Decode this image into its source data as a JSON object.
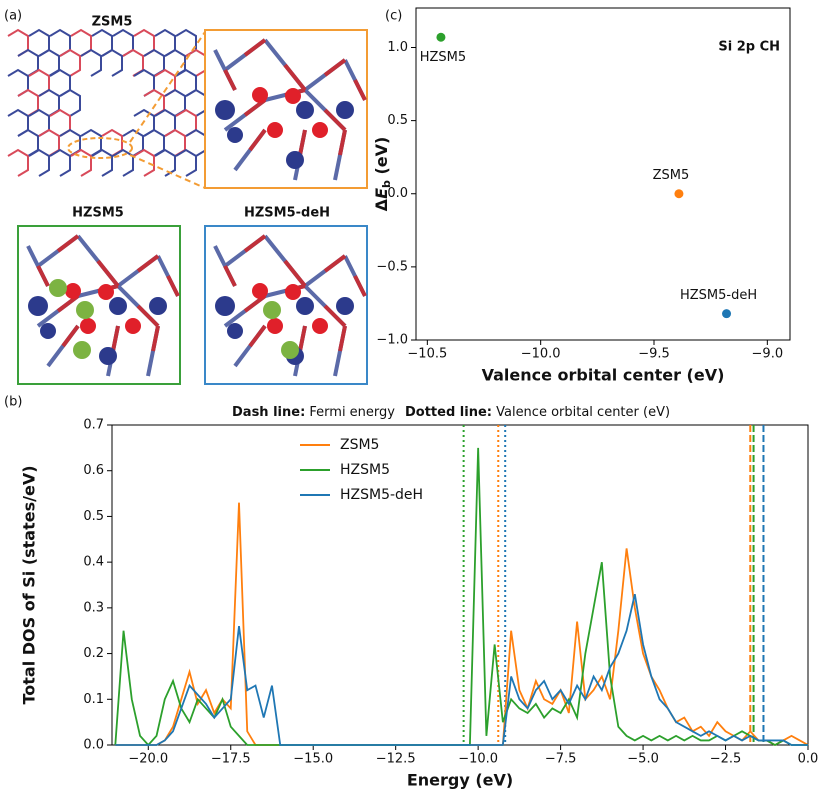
{
  "panel_a": {
    "label": "(a)",
    "titles": [
      "ZSM5",
      "HZSM5",
      "HZSM5-deH"
    ]
  },
  "chart_data": [
    {
      "type": "scatter",
      "panel_label": "(c)",
      "annotation": "Si 2p CH",
      "xlabel": "Valence orbital center (eV)",
      "ylabel": [
        "Δ",
        "E",
        "b",
        " (eV)"
      ],
      "xlim": [
        -10.55,
        -8.9
      ],
      "ylim": [
        -1.0,
        1.27
      ],
      "xticks": [
        {
          "value": -10.5,
          "label": "−10.5"
        },
        {
          "value": -10.0,
          "label": "−10.0"
        },
        {
          "value": -9.5,
          "label": "−9.5"
        },
        {
          "value": -9.0,
          "label": "−9.0"
        }
      ],
      "yticks": [
        {
          "value": -1,
          "label": "−1.0"
        },
        {
          "value": -0.5,
          "label": "−0.5"
        },
        {
          "value": 0,
          "label": "0.0"
        },
        0.5,
        {
          "value": 1,
          "label": "1.0"
        }
      ],
      "series": [
        {
          "name": "HZSM5",
          "color": "#2ca02c",
          "x": [
            -10.44
          ],
          "values": [
            1.07
          ]
        },
        {
          "name": "ZSM5",
          "color": "#ff7f0e",
          "x": [
            -9.39
          ],
          "values": [
            0.0
          ]
        },
        {
          "name": "HZSM5-deH",
          "color": "#1f77b4",
          "x": [
            -9.18
          ],
          "values": [
            -0.82
          ]
        }
      ]
    },
    {
      "type": "line",
      "panel_label": "(b)",
      "annotations": [
        {
          "bold": "Dash line:",
          "text": " Fermi energy"
        },
        {
          "bold": "Dotted line:",
          "text": " Valence orbital center (eV)"
        }
      ],
      "xlabel": "Energy (eV)",
      "ylabel": "Total DOS of Si (states/eV)",
      "xlim": [
        -21.1,
        0
      ],
      "ylim": [
        0,
        0.7
      ],
      "xticks": [
        {
          "value": -20,
          "label": "−20.0"
        },
        {
          "value": -17.5,
          "label": "−17.5"
        },
        {
          "value": -15,
          "label": "−15.0"
        },
        {
          "value": -12.5,
          "label": "−12.5"
        },
        {
          "value": -10,
          "label": "−10.0"
        },
        {
          "value": -7.5,
          "label": "−7.5"
        },
        {
          "value": -5,
          "label": "−5.0"
        },
        {
          "value": -2.5,
          "label": "−2.5"
        },
        {
          "value": 0,
          "label": "0.0"
        }
      ],
      "yticks": [
        {
          "value": 0,
          "label": "0.0"
        },
        0.1,
        0.2,
        0.3,
        0.4,
        0.5,
        0.6,
        0.7
      ],
      "x": [
        -21,
        -20.75,
        -20.5,
        -20.25,
        -20,
        -19.75,
        -19.5,
        -19.25,
        -19,
        -18.75,
        -18.5,
        -18.25,
        -18,
        -17.75,
        -17.5,
        -17.25,
        -17,
        -16.75,
        -16.5,
        -16.25,
        -16,
        -15.75,
        -15.5,
        -15.25,
        -15,
        -14.75,
        -14.5,
        -14.25,
        -14,
        -13.75,
        -13.5,
        -13.25,
        -13,
        -12.75,
        -12.5,
        -12.25,
        -12,
        -11.75,
        -11.5,
        -11.25,
        -11,
        -10.75,
        -10.5,
        -10.25,
        -10,
        -9.75,
        -9.5,
        -9.25,
        -9,
        -8.75,
        -8.5,
        -8.25,
        -8,
        -7.75,
        -7.5,
        -7.25,
        -7,
        -6.75,
        -6.5,
        -6.25,
        -6,
        -5.75,
        -5.5,
        -5.25,
        -5,
        -4.75,
        -4.5,
        -4.25,
        -4,
        -3.75,
        -3.5,
        -3.25,
        -3,
        -2.75,
        -2.5,
        -2.25,
        -2,
        -1.75,
        -1.5,
        -1.25,
        -1,
        -0.75,
        -0.5,
        -0.25,
        0
      ],
      "series": [
        {
          "name": "ZSM5",
          "color": "#ff7f0e",
          "values": [
            0,
            0,
            0,
            0,
            0,
            0,
            0.01,
            0.04,
            0.1,
            0.16,
            0.09,
            0.12,
            0.07,
            0.1,
            0.08,
            0.53,
            0.03,
            0,
            0,
            0,
            0,
            0,
            0,
            0,
            0,
            0,
            0,
            0,
            0,
            0,
            0,
            0,
            0,
            0,
            0,
            0,
            0,
            0,
            0,
            0,
            0,
            0,
            0,
            0,
            0,
            0,
            0,
            0,
            0.25,
            0.12,
            0.08,
            0.14,
            0.1,
            0.09,
            0.12,
            0.07,
            0.27,
            0.1,
            0.12,
            0.15,
            0.1,
            0.25,
            0.43,
            0.3,
            0.2,
            0.15,
            0.12,
            0.08,
            0.05,
            0.06,
            0.03,
            0.04,
            0.02,
            0.05,
            0.03,
            0.02,
            0.01,
            0.03,
            0.01,
            0.01,
            0,
            0.01,
            0.02,
            0.01,
            0
          ]
        },
        {
          "name": "HZSM5",
          "color": "#2ca02c",
          "values": [
            0,
            0.25,
            0.1,
            0.02,
            0,
            0.02,
            0.1,
            0.14,
            0.08,
            0.05,
            0.1,
            0.08,
            0.06,
            0.1,
            0.04,
            0.02,
            0,
            0,
            0,
            0,
            0,
            0,
            0,
            0,
            0,
            0,
            0,
            0,
            0,
            0,
            0,
            0,
            0,
            0,
            0,
            0,
            0,
            0,
            0,
            0,
            0,
            0,
            0,
            0,
            0.65,
            0.02,
            0.22,
            0.05,
            0.1,
            0.08,
            0.07,
            0.09,
            0.06,
            0.08,
            0.07,
            0.1,
            0.06,
            0.2,
            0.3,
            0.4,
            0.15,
            0.04,
            0.02,
            0.01,
            0.02,
            0.01,
            0.02,
            0.01,
            0.02,
            0.01,
            0.02,
            0.01,
            0.01,
            0.02,
            0.01,
            0.02,
            0.03,
            0.02,
            0.01,
            0.01,
            0,
            0.01,
            0,
            0,
            0
          ]
        },
        {
          "name": "HZSM5-deH",
          "color": "#1f77b4",
          "values": [
            0,
            0,
            0,
            0,
            0,
            0,
            0.01,
            0.03,
            0.08,
            0.13,
            0.11,
            0.09,
            0.06,
            0.08,
            0.1,
            0.26,
            0.12,
            0.13,
            0.06,
            0.13,
            0,
            0,
            0,
            0,
            0,
            0,
            0,
            0,
            0,
            0,
            0,
            0,
            0,
            0,
            0,
            0,
            0,
            0,
            0,
            0,
            0,
            0,
            0,
            0,
            0,
            0,
            0,
            0,
            0.15,
            0.1,
            0.08,
            0.12,
            0.14,
            0.1,
            0.12,
            0.09,
            0.13,
            0.1,
            0.15,
            0.12,
            0.17,
            0.2,
            0.25,
            0.33,
            0.22,
            0.15,
            0.1,
            0.08,
            0.05,
            0.04,
            0.03,
            0.02,
            0.03,
            0.02,
            0.01,
            0.02,
            0.01,
            0.02,
            0.01,
            0.01,
            0.01,
            0.01,
            0,
            0,
            0
          ]
        }
      ],
      "vlines": [
        {
          "x": -1.75,
          "color": "#ff7f0e",
          "style": "dashed"
        },
        {
          "x": -1.65,
          "color": "#2ca02c",
          "style": "dashed"
        },
        {
          "x": -1.35,
          "color": "#1f77b4",
          "style": "dashed"
        },
        {
          "x": -10.44,
          "color": "#2ca02c",
          "style": "dotted"
        },
        {
          "x": -9.39,
          "color": "#ff7f0e",
          "style": "dotted"
        },
        {
          "x": -9.18,
          "color": "#1f77b4",
          "style": "dotted"
        }
      ],
      "legend": "upper center"
    }
  ]
}
